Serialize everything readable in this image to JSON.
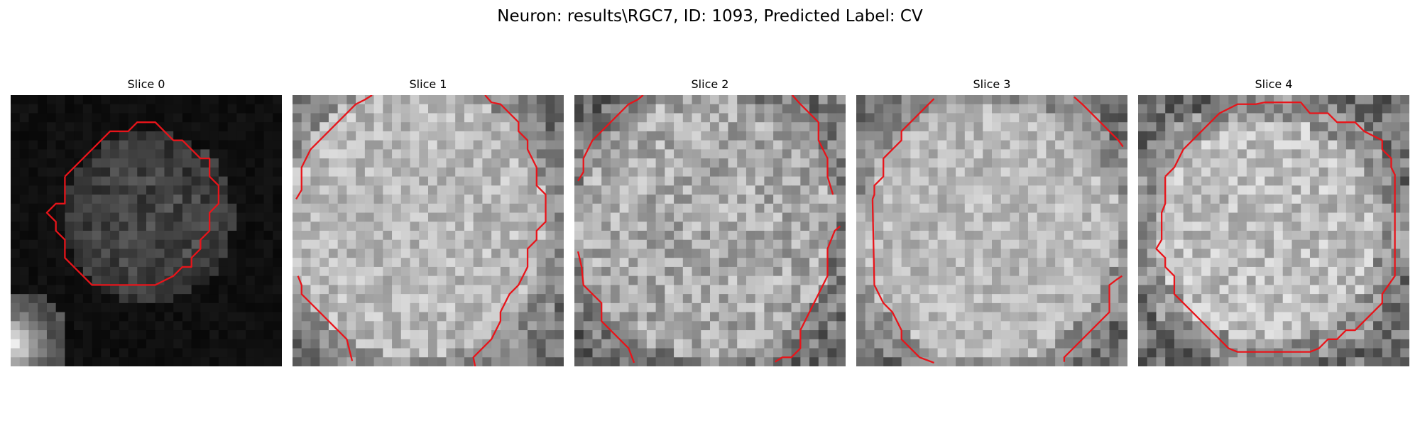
{
  "figure": {
    "title": "Neuron: results\\RGC7, ID: 1093, Predicted Label: CV"
  },
  "slices": [
    {
      "title": "Slice 0",
      "style": "dark"
    },
    {
      "title": "Slice 1",
      "style": "bright"
    },
    {
      "title": "Slice 2",
      "style": "bright"
    },
    {
      "title": "Slice 3",
      "style": "bright"
    },
    {
      "title": "Slice 4",
      "style": "bright"
    }
  ],
  "colors": {
    "contour": "#e8141a",
    "background": "#ffffff"
  }
}
